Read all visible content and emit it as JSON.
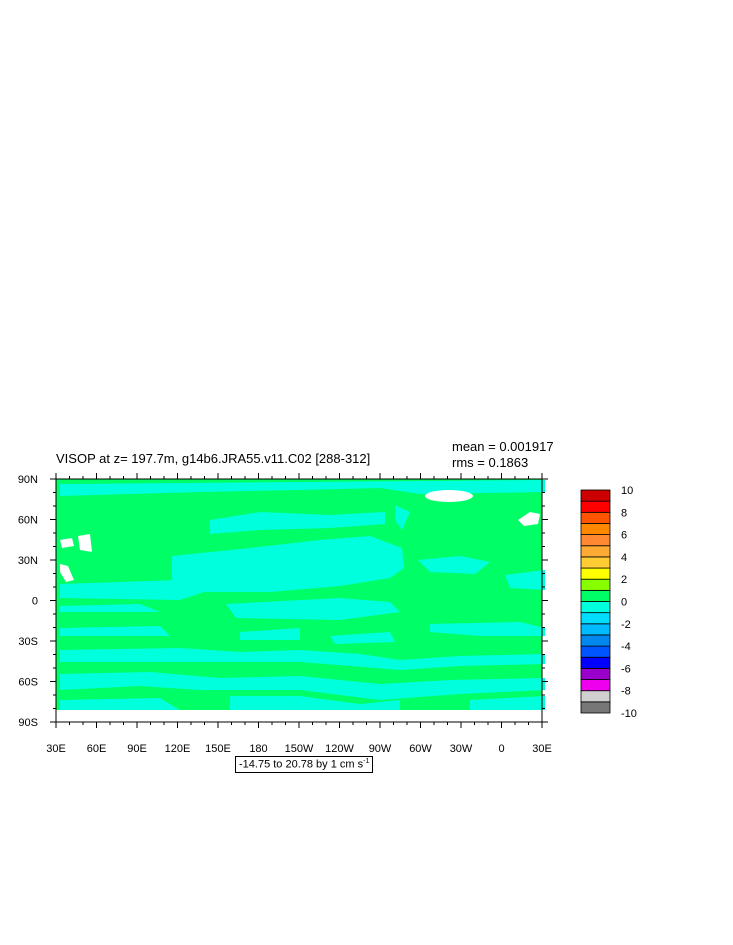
{
  "title": "VISOP at z= 197.7m, g14b6.JRA55.v11.C02 [288-312]",
  "stats": {
    "mean": "mean = 0.001917",
    "rms": "rms = 0.1863"
  },
  "range_label": {
    "text": "-14.75 to 20.78 by 1 cm s",
    "unit_exponent": "-1"
  },
  "colors": {
    "land": "#ffffff",
    "positive_fill": "#00ff66",
    "negative_fill": "#00ffdd"
  },
  "chart_data": {
    "type": "heatmap",
    "title": "VISOP at z= 197.7m, g14b6.JRA55.v11.C02 [288-312]",
    "x_ticks": [
      "30E",
      "60E",
      "90E",
      "120E",
      "150E",
      "180",
      "150W",
      "120W",
      "90W",
      "60W",
      "30W",
      "0",
      "30E"
    ],
    "y_ticks": [
      "90N",
      "60N",
      "30N",
      "0",
      "30S",
      "60S",
      "90S"
    ],
    "xlim": [
      30,
      390
    ],
    "ylim": [
      -90,
      90
    ],
    "colorbar": {
      "levels": [
        -10,
        -9,
        -8,
        -7,
        -6,
        -5,
        -4,
        -3,
        -2,
        -1,
        0,
        1,
        2,
        3,
        4,
        5,
        6,
        7,
        8,
        9,
        10
      ],
      "labels": [
        "10",
        "8",
        "6",
        "4",
        "2",
        "0",
        "-2",
        "-4",
        "-6",
        "-8",
        "-10"
      ],
      "colors": [
        "#777777",
        "#d0d0d0",
        "#ee00ee",
        "#9900cc",
        "#0000ff",
        "#0055ff",
        "#0088ee",
        "#00bbff",
        "#00ddff",
        "#00ffdd",
        "#00ff66",
        "#88ff00",
        "#ffff00",
        "#ffcc33",
        "#ffaa33",
        "#ff8833",
        "#ff8800",
        "#ff5500",
        "#ff0000",
        "#cc0000"
      ]
    }
  }
}
